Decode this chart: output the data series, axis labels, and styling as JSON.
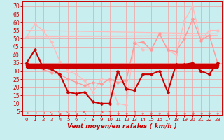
{
  "bg_color": "#c8eef0",
  "grid_color": "#f5a0a0",
  "xlabel": "Vent moyen/en rafales ( km/h )",
  "xlim": [
    -0.5,
    23.5
  ],
  "ylim": [
    3,
    73
  ],
  "yticks": [
    5,
    10,
    15,
    20,
    25,
    30,
    35,
    40,
    45,
    50,
    55,
    60,
    65,
    70
  ],
  "xticks": [
    0,
    1,
    2,
    3,
    4,
    5,
    6,
    7,
    8,
    9,
    10,
    11,
    12,
    13,
    14,
    15,
    16,
    17,
    18,
    19,
    20,
    21,
    22,
    23
  ],
  "series": [
    {
      "label": "rafales_max_top",
      "color": "#ffbbbb",
      "lw": 1.0,
      "marker": "D",
      "ms": 2.5,
      "zorder": 2,
      "data_x": [
        0,
        1,
        2,
        3,
        4,
        5,
        6,
        7,
        8,
        9,
        10,
        11,
        12,
        13,
        14,
        15,
        16,
        17,
        18,
        19,
        20,
        21,
        22,
        23
      ],
      "data_y": [
        51,
        59,
        55,
        48,
        36,
        30,
        28,
        24,
        17,
        25,
        24,
        10,
        9,
        48,
        43,
        43,
        53,
        43,
        40,
        61,
        70,
        49,
        55,
        55
      ]
    },
    {
      "label": "rafales_flat1",
      "color": "#ffbbbb",
      "lw": 0.9,
      "marker": null,
      "ms": 0,
      "zorder": 2,
      "data_x": [
        0,
        23
      ],
      "data_y": [
        51,
        52
      ]
    },
    {
      "label": "rafales_flat2",
      "color": "#ffbbbb",
      "lw": 0.9,
      "marker": null,
      "ms": 0,
      "zorder": 2,
      "data_x": [
        0,
        23
      ],
      "data_y": [
        55,
        53
      ]
    },
    {
      "label": "rafales_flat3",
      "color": "#ffbbbb",
      "lw": 0.9,
      "marker": null,
      "ms": 0,
      "zorder": 2,
      "data_x": [
        0,
        23
      ],
      "data_y": [
        52,
        52
      ]
    },
    {
      "label": "rafales_mid",
      "color": "#ff9999",
      "lw": 1.0,
      "marker": "D",
      "ms": 2.5,
      "zorder": 2,
      "data_x": [
        0,
        1,
        2,
        3,
        4,
        5,
        6,
        7,
        8,
        9,
        10,
        11,
        12,
        13,
        14,
        15,
        16,
        17,
        18,
        19,
        20,
        21,
        22,
        23
      ],
      "data_y": [
        34,
        32,
        31,
        29,
        28,
        25,
        23,
        21,
        23,
        22,
        25,
        23,
        24,
        47,
        48,
        43,
        53,
        43,
        42,
        50,
        62,
        49,
        52,
        35
      ]
    },
    {
      "label": "vent_moyen",
      "color": "#cc0000",
      "lw": 1.5,
      "marker": "D",
      "ms": 2.5,
      "zorder": 4,
      "data_x": [
        0,
        1,
        2,
        3,
        4,
        5,
        6,
        7,
        8,
        9,
        10,
        11,
        12,
        13,
        14,
        15,
        16,
        17,
        18,
        19,
        20,
        21,
        22,
        23
      ],
      "data_y": [
        35,
        43,
        32,
        31,
        28,
        17,
        16,
        17,
        11,
        10,
        10,
        30,
        19,
        18,
        28,
        28,
        30,
        17,
        34,
        34,
        35,
        30,
        28,
        35
      ]
    },
    {
      "label": "hline1",
      "color": "#cc0000",
      "lw": 2.5,
      "marker": null,
      "ms": 0,
      "zorder": 3,
      "data_x": [
        0,
        23
      ],
      "data_y": [
        34,
        34
      ]
    },
    {
      "label": "hline2",
      "color": "#cc0000",
      "lw": 2.0,
      "marker": null,
      "ms": 0,
      "zorder": 3,
      "data_x": [
        0,
        23
      ],
      "data_y": [
        33,
        33
      ]
    },
    {
      "label": "hline3",
      "color": "#cc0000",
      "lw": 1.5,
      "marker": null,
      "ms": 0,
      "zorder": 3,
      "data_x": [
        0,
        23
      ],
      "data_y": [
        32.5,
        32.5
      ]
    },
    {
      "label": "hline4",
      "color": "#cc0000",
      "lw": 1.0,
      "marker": null,
      "ms": 0,
      "zorder": 3,
      "data_x": [
        0,
        23
      ],
      "data_y": [
        32,
        32
      ]
    }
  ],
  "wind_dirs": [
    "→",
    "→",
    "→",
    "↘",
    "↘",
    "↘",
    "↘",
    "↖",
    "→",
    "↗",
    "↑",
    "↓",
    "↓",
    "↑",
    "↓",
    "↓",
    "↓",
    "↓",
    "↓",
    "↓",
    "↓",
    "↓",
    "↓",
    "↓"
  ],
  "wind_dir_color": "#ff4444",
  "wind_dir_fontsize": 5.5,
  "tick_color": "#cc0000",
  "tick_fontsize_x": 5.0,
  "tick_fontsize_y": 5.5,
  "xlabel_fontsize": 6.5,
  "xlabel_color": "#cc0000"
}
